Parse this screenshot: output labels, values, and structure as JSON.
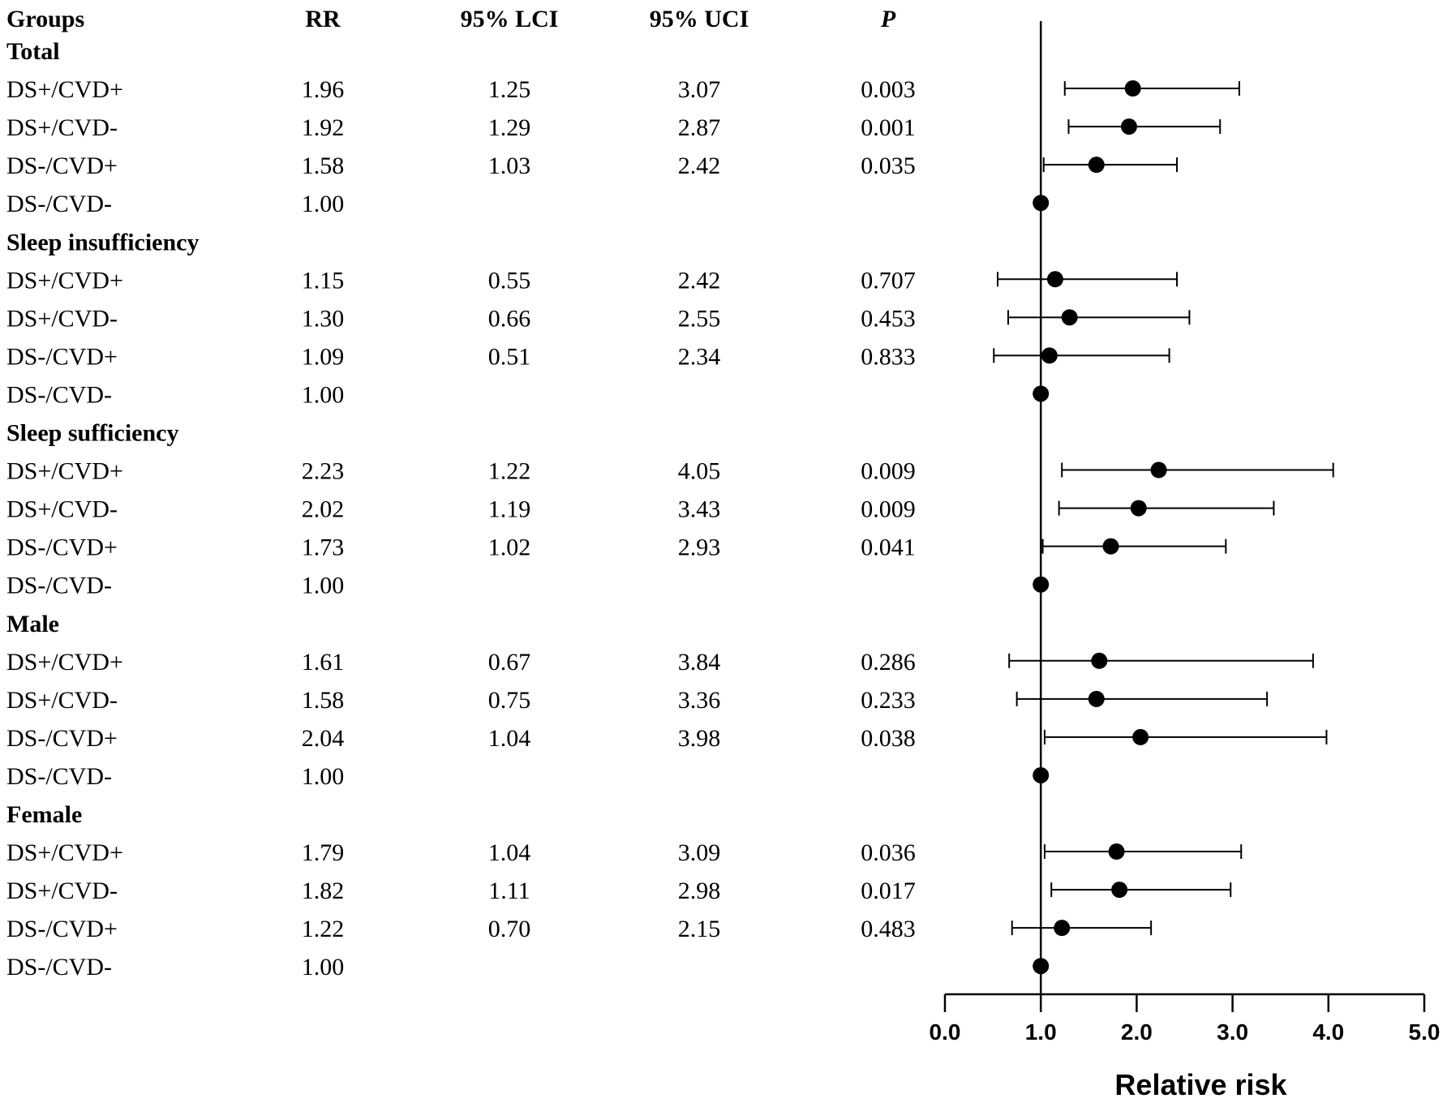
{
  "header": {
    "groups": "Groups",
    "rr": "RR",
    "lci": "95% LCI",
    "uci": "95% UCI",
    "p": "P"
  },
  "rows": [
    {
      "kind": "section",
      "label": "Total"
    },
    {
      "kind": "data",
      "label": "DS+/CVD+",
      "rr": "1.96",
      "lci": "1.25",
      "uci": "3.07",
      "p": "0.003"
    },
    {
      "kind": "data",
      "label": "DS+/CVD-",
      "rr": "1.92",
      "lci": "1.29",
      "uci": "2.87",
      "p": "0.001"
    },
    {
      "kind": "data",
      "label": "DS-/CVD+",
      "rr": "1.58",
      "lci": "1.03",
      "uci": "2.42",
      "p": "0.035"
    },
    {
      "kind": "data",
      "label": "DS-/CVD-",
      "rr": "1.00",
      "lci": "",
      "uci": "",
      "p": ""
    },
    {
      "kind": "section",
      "label": "Sleep insufficiency"
    },
    {
      "kind": "data",
      "label": "DS+/CVD+",
      "rr": "1.15",
      "lci": "0.55",
      "uci": "2.42",
      "p": "0.707"
    },
    {
      "kind": "data",
      "label": "DS+/CVD-",
      "rr": "1.30",
      "lci": "0.66",
      "uci": "2.55",
      "p": "0.453"
    },
    {
      "kind": "data",
      "label": "DS-/CVD+",
      "rr": "1.09",
      "lci": "0.51",
      "uci": "2.34",
      "p": "0.833"
    },
    {
      "kind": "data",
      "label": "DS-/CVD-",
      "rr": "1.00",
      "lci": "",
      "uci": "",
      "p": ""
    },
    {
      "kind": "section",
      "label": "Sleep sufficiency"
    },
    {
      "kind": "data",
      "label": "DS+/CVD+",
      "rr": "2.23",
      "lci": "1.22",
      "uci": "4.05",
      "p": "0.009"
    },
    {
      "kind": "data",
      "label": "DS+/CVD-",
      "rr": "2.02",
      "lci": "1.19",
      "uci": "3.43",
      "p": "0.009"
    },
    {
      "kind": "data",
      "label": "DS-/CVD+",
      "rr": "1.73",
      "lci": "1.02",
      "uci": "2.93",
      "p": "0.041"
    },
    {
      "kind": "data",
      "label": "DS-/CVD-",
      "rr": "1.00",
      "lci": "",
      "uci": "",
      "p": ""
    },
    {
      "kind": "section",
      "label": "Male"
    },
    {
      "kind": "data",
      "label": "DS+/CVD+",
      "rr": "1.61",
      "lci": "0.67",
      "uci": "3.84",
      "p": "0.286"
    },
    {
      "kind": "data",
      "label": "DS+/CVD-",
      "rr": "1.58",
      "lci": "0.75",
      "uci": "3.36",
      "p": "0.233"
    },
    {
      "kind": "data",
      "label": "DS-/CVD+",
      "rr": "2.04",
      "lci": "1.04",
      "uci": "3.98",
      "p": "0.038"
    },
    {
      "kind": "data",
      "label": "DS-/CVD-",
      "rr": "1.00",
      "lci": "",
      "uci": "",
      "p": ""
    },
    {
      "kind": "section",
      "label": "Female"
    },
    {
      "kind": "data",
      "label": "DS+/CVD+",
      "rr": "1.79",
      "lci": "1.04",
      "uci": "3.09",
      "p": "0.036"
    },
    {
      "kind": "data",
      "label": "DS+/CVD-",
      "rr": "1.82",
      "lci": "1.11",
      "uci": "2.98",
      "p": "0.017"
    },
    {
      "kind": "data",
      "label": "DS-/CVD+",
      "rr": "1.22",
      "lci": "0.70",
      "uci": "2.15",
      "p": "0.483"
    },
    {
      "kind": "data",
      "label": "DS-/CVD-",
      "rr": "1.00",
      "lci": "",
      "uci": "",
      "p": ""
    }
  ],
  "chart_data": {
    "type": "forest",
    "title": "",
    "xlabel": "Relative risk",
    "ylabel": "",
    "xlim": [
      0.0,
      5.0
    ],
    "xticks": [
      0.0,
      1.0,
      2.0,
      3.0,
      4.0,
      5.0
    ],
    "xtick_labels": [
      "0.0",
      "1.0",
      "2.0",
      "3.0",
      "4.0",
      "5.0"
    ],
    "reference_line": 1.0,
    "series": [
      {
        "group": "Total",
        "name": "DS+/CVD+",
        "estimate": 1.96,
        "lower": 1.25,
        "upper": 3.07
      },
      {
        "group": "Total",
        "name": "DS+/CVD-",
        "estimate": 1.92,
        "lower": 1.29,
        "upper": 2.87
      },
      {
        "group": "Total",
        "name": "DS-/CVD+",
        "estimate": 1.58,
        "lower": 1.03,
        "upper": 2.42
      },
      {
        "group": "Total",
        "name": "DS-/CVD-",
        "estimate": 1.0,
        "lower": null,
        "upper": null
      },
      {
        "group": "Sleep insufficiency",
        "name": "DS+/CVD+",
        "estimate": 1.15,
        "lower": 0.55,
        "upper": 2.42
      },
      {
        "group": "Sleep insufficiency",
        "name": "DS+/CVD-",
        "estimate": 1.3,
        "lower": 0.66,
        "upper": 2.55
      },
      {
        "group": "Sleep insufficiency",
        "name": "DS-/CVD+",
        "estimate": 1.09,
        "lower": 0.51,
        "upper": 2.34
      },
      {
        "group": "Sleep insufficiency",
        "name": "DS-/CVD-",
        "estimate": 1.0,
        "lower": null,
        "upper": null
      },
      {
        "group": "Sleep sufficiency",
        "name": "DS+/CVD+",
        "estimate": 2.23,
        "lower": 1.22,
        "upper": 4.05
      },
      {
        "group": "Sleep sufficiency",
        "name": "DS+/CVD-",
        "estimate": 2.02,
        "lower": 1.19,
        "upper": 3.43
      },
      {
        "group": "Sleep sufficiency",
        "name": "DS-/CVD+",
        "estimate": 1.73,
        "lower": 1.02,
        "upper": 2.93
      },
      {
        "group": "Sleep sufficiency",
        "name": "DS-/CVD-",
        "estimate": 1.0,
        "lower": null,
        "upper": null
      },
      {
        "group": "Male",
        "name": "DS+/CVD+",
        "estimate": 1.61,
        "lower": 0.67,
        "upper": 3.84
      },
      {
        "group": "Male",
        "name": "DS+/CVD-",
        "estimate": 1.58,
        "lower": 0.75,
        "upper": 3.36
      },
      {
        "group": "Male",
        "name": "DS-/CVD+",
        "estimate": 2.04,
        "lower": 1.04,
        "upper": 3.98
      },
      {
        "group": "Male",
        "name": "DS-/CVD-",
        "estimate": 1.0,
        "lower": null,
        "upper": null
      },
      {
        "group": "Female",
        "name": "DS+/CVD+",
        "estimate": 1.79,
        "lower": 1.04,
        "upper": 3.09
      },
      {
        "group": "Female",
        "name": "DS+/CVD-",
        "estimate": 1.82,
        "lower": 1.11,
        "upper": 2.98
      },
      {
        "group": "Female",
        "name": "DS-/CVD+",
        "estimate": 1.22,
        "lower": 0.7,
        "upper": 2.15
      },
      {
        "group": "Female",
        "name": "DS-/CVD-",
        "estimate": 1.0,
        "lower": null,
        "upper": null
      }
    ]
  }
}
